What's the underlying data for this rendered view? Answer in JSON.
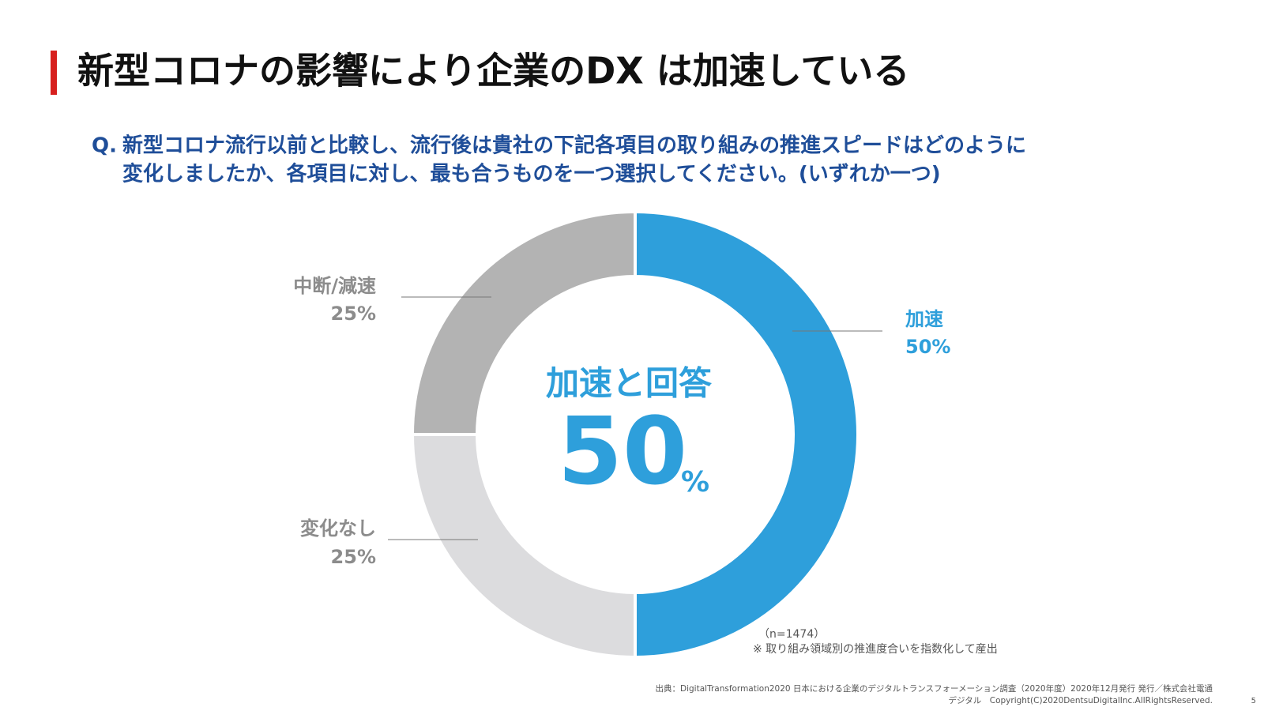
{
  "title": "新型コロナの影響により企業のDX は加速している",
  "question": {
    "prefix": "Q.",
    "lines": [
      "新型コロナ流行以前と比較し、流行後は貴社の下記各項目の取り組みの推進スピードはどのように",
      "変化しましたか、各項目に対し、最も合うものを一つ選択してください。(いずれか一つ)"
    ]
  },
  "chart_data": {
    "type": "donut",
    "categories": [
      "加速",
      "変化なし",
      "中断/減速"
    ],
    "values": [
      50,
      25,
      25
    ],
    "value_labels": [
      "50%",
      "25%",
      "25%"
    ],
    "colors": [
      "#2e9fdb",
      "#dcdcde",
      "#b3b3b3"
    ],
    "center_label": "加速と回答",
    "center_value": 50,
    "center_unit": "%"
  },
  "notes": [
    "（n=1474）",
    "※ 取り組み領域別の推進度合いを指数化して産出"
  ],
  "source": [
    "出典：DigitalTransformation2020 日本における企業のデジタルトランスフォーメーション調査（2020年度）2020年12月発行 発行／株式会社電通",
    "デジタル　Copyright(C)2020DentsuDigitalInc.AllRightsReserved."
  ],
  "page_number": "5"
}
